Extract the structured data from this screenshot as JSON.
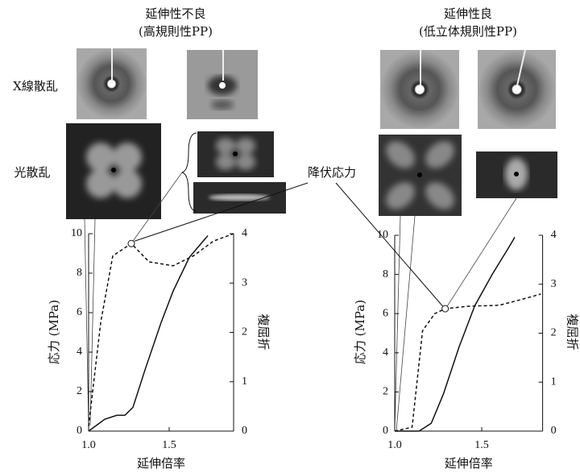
{
  "row_labels": [
    "X線散乱",
    "光散乱"
  ],
  "annotation": "降伏応力",
  "chart_data": [
    {
      "type": "line",
      "title": "延伸性不良",
      "subtitle": "(高規則性PP)",
      "x_label": "延伸倍率",
      "y_label": "応力 (MPa)",
      "y2_label": "複屈折",
      "xlim": [
        1.0,
        1.9
      ],
      "xticks": [
        {
          "value": 1.0,
          "label": "1.0"
        },
        1.5
      ],
      "ylim": [
        0,
        10
      ],
      "yticks": [
        0,
        2,
        4,
        6,
        8,
        10
      ],
      "y2lim": [
        0,
        4
      ],
      "y2ticks": [
        0,
        1,
        2,
        3,
        4
      ],
      "series": [
        {
          "style": "solid",
          "color": "#111111",
          "x": [
            1.0,
            1.1,
            1.175,
            1.225,
            1.275,
            1.35,
            1.45,
            1.525,
            1.625,
            1.74
          ],
          "values": [
            0,
            0.6,
            0.8,
            0.8,
            1.2,
            3.1,
            5.5,
            7.1,
            8.8,
            9.9
          ]
        },
        {
          "style": "dashed",
          "color": "#111111",
          "axis": "y2",
          "x": [
            1.0,
            1.075,
            1.15,
            1.265,
            1.375,
            1.525,
            1.65,
            1.775,
            1.9
          ],
          "values": [
            0.1,
            2.2,
            3.55,
            3.8,
            3.43,
            3.35,
            3.55,
            3.85,
            4.0
          ]
        }
      ]
    },
    {
      "type": "line",
      "title": "延伸性良",
      "subtitle": "(低立体規則性PP)",
      "x_label": "延伸倍率",
      "y_label": "応力 (MPa)",
      "y2_label": "複屈折",
      "xlim": [
        1.0,
        1.85
      ],
      "xticks": [
        {
          "value": 1.0,
          "label": "1.0"
        },
        1.5
      ],
      "ylim": [
        0,
        10
      ],
      "yticks": [
        0,
        2,
        4,
        6,
        8,
        10
      ],
      "y2lim": [
        0,
        4
      ],
      "y2ticks": [
        0,
        1,
        2,
        3,
        4
      ],
      "series": [
        {
          "style": "solid",
          "color": "#111111",
          "x": [
            1.0,
            1.14,
            1.21,
            1.28,
            1.37,
            1.46,
            1.56,
            1.65,
            1.69
          ],
          "values": [
            0,
            0,
            0.4,
            1.9,
            4.3,
            6.4,
            8.0,
            9.3,
            9.9
          ]
        },
        {
          "style": "dashed",
          "color": "#111111",
          "axis": "y2",
          "x": [
            1.0,
            1.1,
            1.16,
            1.23,
            1.29,
            1.42,
            1.6,
            1.74,
            1.84
          ],
          "values": [
            0,
            0.08,
            2.05,
            2.4,
            2.5,
            2.55,
            2.57,
            2.7,
            2.8
          ]
        }
      ]
    }
  ]
}
